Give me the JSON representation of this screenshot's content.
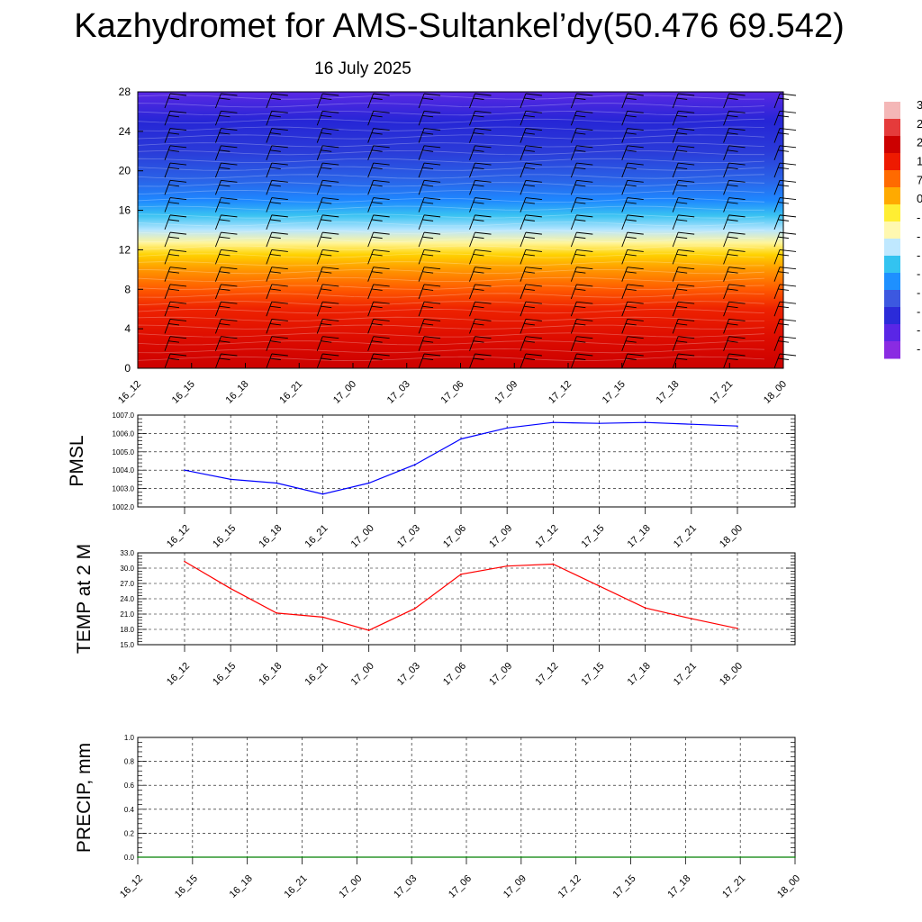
{
  "title": "Kazhydromet for AMS-Sultankel’dy(50.476 69.542)",
  "date_label": "16 July 2025",
  "colorbar": {
    "labels": [
      "3",
      "2",
      "2",
      "1",
      "7",
      "0",
      "-",
      "-",
      "-",
      "-",
      "-",
      "-",
      "-",
      "-"
    ],
    "colors": [
      "#f4b7b7",
      "#e53b3b",
      "#cc0000",
      "#ee1a00",
      "#ff6a00",
      "#ffaa00",
      "#ffee33",
      "#fff8b0",
      "#bfe8ff",
      "#33c3f0",
      "#1e90ff",
      "#3c58e0",
      "#2b2bd9",
      "#5a26e6",
      "#8a2be2"
    ]
  },
  "chart_data": [
    {
      "type": "heatmap",
      "name": "profile",
      "y_ticks": [
        "0",
        "4",
        "8",
        "12",
        "16",
        "20",
        "24",
        "28"
      ],
      "ylim": [
        0,
        28
      ],
      "x_ticks": [
        "16_12",
        "16_15",
        "16_18",
        "16_21",
        "17_00",
        "17_03",
        "17_06",
        "17_09",
        "17_12",
        "17_15",
        "17_18",
        "17_21",
        "18_00"
      ],
      "z_profile": [
        {
          "y": 0,
          "color": "#cc0000"
        },
        {
          "y": 3,
          "color": "#dd0c00"
        },
        {
          "y": 6,
          "color": "#ee2200"
        },
        {
          "y": 8,
          "color": "#ff5a00"
        },
        {
          "y": 10,
          "color": "#ff9800"
        },
        {
          "y": 11.5,
          "color": "#ffd200"
        },
        {
          "y": 12.7,
          "color": "#fff59a"
        },
        {
          "y": 14,
          "color": "#b8e6ff"
        },
        {
          "y": 15.5,
          "color": "#39c2f2"
        },
        {
          "y": 17,
          "color": "#1e88ff"
        },
        {
          "y": 19,
          "color": "#2a64e8"
        },
        {
          "y": 22,
          "color": "#2a3ad8"
        },
        {
          "y": 25,
          "color": "#2626d6"
        },
        {
          "y": 28,
          "color": "#5a28e4"
        }
      ],
      "wind_barbs": true
    },
    {
      "type": "line",
      "name": "pmsl",
      "ylabel": "PMSL",
      "categories": [
        "16_12",
        "16_15",
        "16_18",
        "16_21",
        "17_00",
        "17_03",
        "17_06",
        "17_09",
        "17_12",
        "17_15",
        "17_18",
        "17_21",
        "18_00"
      ],
      "values": [
        1004.0,
        1003.5,
        1003.3,
        1002.7,
        1003.3,
        1004.3,
        1005.7,
        1006.3,
        1006.6,
        1006.55,
        1006.6,
        1006.5,
        1006.4
      ],
      "ylim": [
        1002.0,
        1007.0
      ],
      "y_ticks": [
        "1002.0",
        "1003.0",
        "1004.0",
        "1005.0",
        "1006.0",
        "1007.0"
      ],
      "color": "#0000ff",
      "grid": true
    },
    {
      "type": "line",
      "name": "temp",
      "ylabel": "TEMP at 2 M",
      "categories": [
        "16_12",
        "16_15",
        "16_18",
        "16_21",
        "17_00",
        "17_03",
        "17_06",
        "17_09",
        "17_12",
        "17_15",
        "17_18",
        "17_21",
        "18_00"
      ],
      "values": [
        31.3,
        26.0,
        21.2,
        20.4,
        17.8,
        22.1,
        28.8,
        30.4,
        30.8,
        26.5,
        22.2,
        20.1,
        18.2
      ],
      "ylim": [
        15.0,
        33.0
      ],
      "y_ticks": [
        "15.0",
        "18.0",
        "21.0",
        "24.0",
        "27.0",
        "30.0",
        "33.0"
      ],
      "color": "#ff0000",
      "grid": true
    },
    {
      "type": "line",
      "name": "precip",
      "ylabel": "PRECIP, mm",
      "categories": [
        "16_12",
        "16_15",
        "16_18",
        "16_21",
        "17_00",
        "17_03",
        "17_06",
        "17_09",
        "17_12",
        "17_15",
        "17_18",
        "17_21",
        "18_00"
      ],
      "values": [
        0,
        0,
        0,
        0,
        0,
        0,
        0,
        0,
        0,
        0,
        0,
        0,
        0
      ],
      "ylim": [
        0.0,
        1.0
      ],
      "y_ticks": [
        "0.0",
        "0.2",
        "0.4",
        "0.6",
        "0.8",
        "1.0"
      ],
      "color": "#008000",
      "grid": true
    }
  ]
}
